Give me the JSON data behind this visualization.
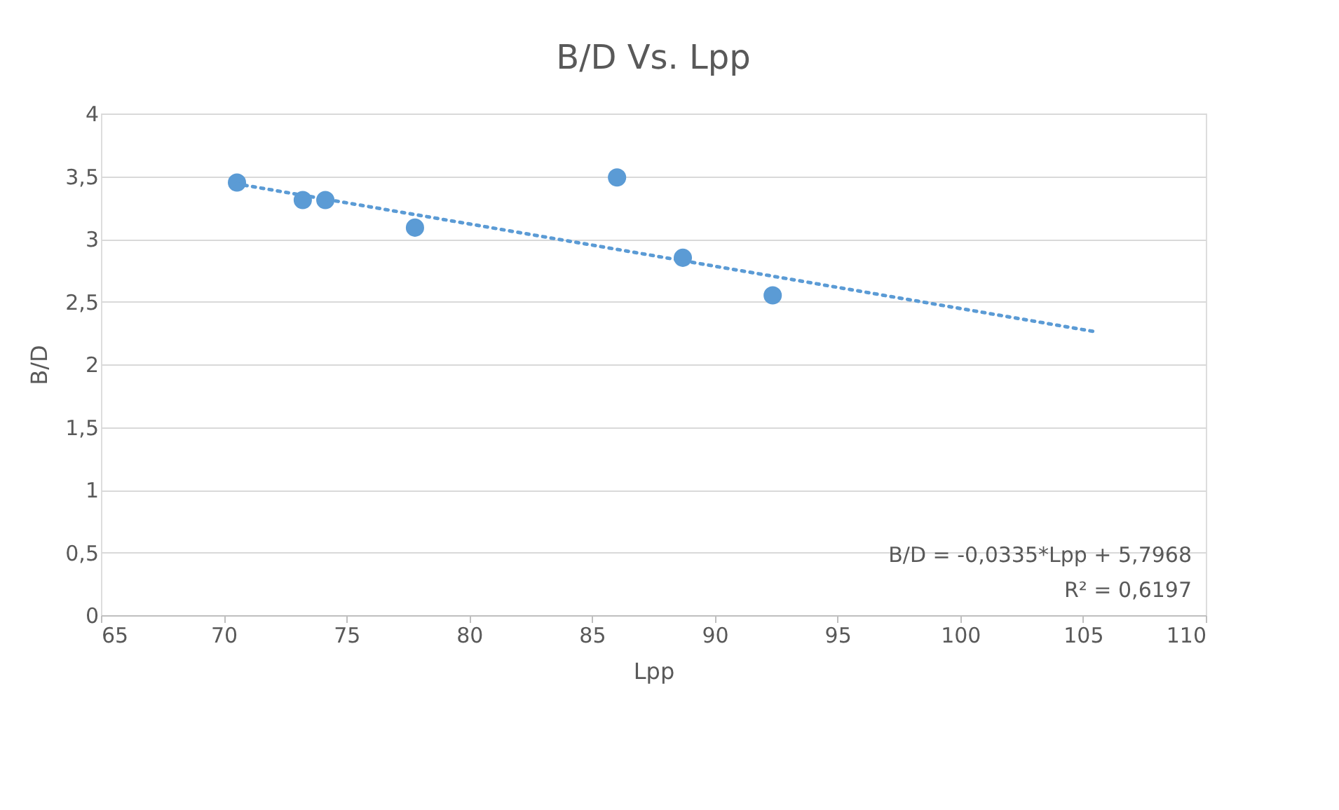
{
  "chart_data": {
    "type": "scatter",
    "title": "B/D Vs. Lpp",
    "xlabel": "Lpp",
    "ylabel": "B/D",
    "x": [
      70.54,
      73.22,
      74.14,
      77.79,
      86.02,
      88.7,
      92.36
    ],
    "series": [
      {
        "color": "#5b9bd5",
        "marker": "circle",
        "values": [
          3.45,
          3.31,
          3.31,
          3.09,
          3.49,
          2.85,
          2.55
        ]
      },
      {
        "type": "line",
        "color": "#5b9bd5",
        "line_style": "dotted",
        "marker": "none",
        "x": [
          70.5,
          105.5
        ],
        "values": [
          3.44,
          2.26
        ]
      }
    ],
    "xlim": [
      65,
      110
    ],
    "xticks": [
      65,
      70,
      75,
      80,
      85,
      90,
      95,
      100,
      105,
      110
    ],
    "ylim": [
      0,
      4
    ],
    "yticks": [
      {
        "value": 0,
        "label": "0"
      },
      {
        "value": 0.5,
        "label": "0,5"
      },
      {
        "value": 1,
        "label": "1"
      },
      {
        "value": 1.5,
        "label": "1,5"
      },
      {
        "value": 2,
        "label": "2"
      },
      {
        "value": 2.5,
        "label": "2,5"
      },
      {
        "value": 3,
        "label": "3"
      },
      {
        "value": 3.5,
        "label": "3,5"
      },
      {
        "value": 4,
        "label": "4"
      }
    ],
    "grid": "y",
    "annotations": [
      "B/D = -0,0335*Lpp + 5,7968",
      "R² = 0,6197"
    ]
  }
}
